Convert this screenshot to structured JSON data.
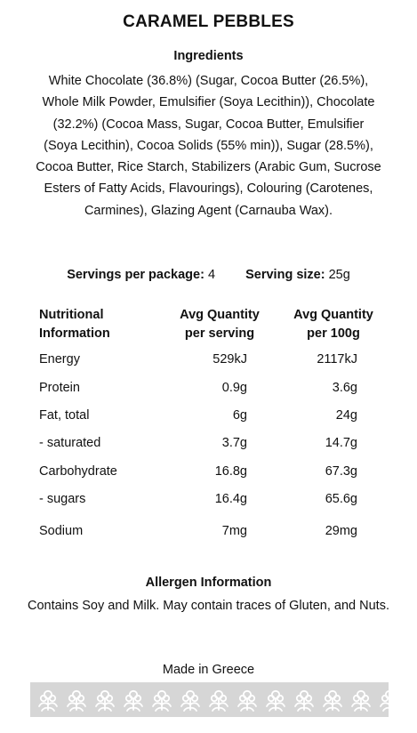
{
  "title": "CARAMEL PEBBLES",
  "ingredients": {
    "heading": "Ingredients",
    "text": "White Chocolate (36.8%) (Sugar, Cocoa Butter (26.5%), Whole Milk Powder, Emulsifier (Soya Lecithin)), Chocolate (32.2%) (Cocoa Mass, Sugar, Cocoa Butter, Emulsifier (Soya Lecithin), Cocoa Solids (55% min)), Sugar (28.5%), Cocoa Butter, Rice Starch, Stabilizers (Arabic Gum, Sucrose Esters of Fatty Acids, Flavourings), Colouring (Carotenes, Carmines), Glazing Agent (Carnauba Wax)."
  },
  "servings": {
    "per_package_label": "Servings per package:",
    "per_package_value": "4",
    "size_label": "Serving size:",
    "size_value": "25g"
  },
  "nutrition": {
    "headers": {
      "name_line1": "Nutritional",
      "name_line2": "Information",
      "serving_line1": "Avg Quantity",
      "serving_line2": "per serving",
      "per100_line1": "Avg Quantity",
      "per100_line2": "per 100g"
    },
    "rows": [
      {
        "name": "Energy",
        "serving": "529kJ",
        "per100": "2117kJ"
      },
      {
        "name": "Protein",
        "serving": "0.9g",
        "per100": "3.6g"
      },
      {
        "name": "Fat, total",
        "serving": "6g",
        "per100": "24g"
      },
      {
        "name": "- saturated",
        "serving": "3.7g",
        "per100": "14.7g"
      },
      {
        "name": "Carbohydrate",
        "serving": "16.8g",
        "per100": "67.3g"
      },
      {
        "name": "- sugars",
        "serving": "16.4g",
        "per100": "65.6g"
      },
      {
        "name": "Sodium",
        "serving": "7mg",
        "per100": "29mg"
      }
    ]
  },
  "allergen": {
    "heading": "Allergen Information",
    "text": "Contains Soy and Milk. May contain traces of Gluten, and Nuts."
  },
  "origin": "Made in Greece",
  "decoration": {
    "band_color": "#d6d6d6",
    "motif_color": "#ffffff",
    "motif_icon": "flower-motif-icon",
    "motif_count": 13
  }
}
